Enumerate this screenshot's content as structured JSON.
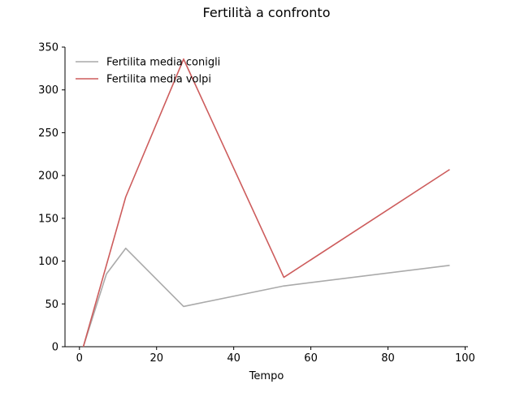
{
  "chart_data": {
    "type": "line",
    "title": "Fertilità a confronto",
    "xlabel": "Tempo",
    "ylabel": "",
    "xlim": [
      -3.75,
      100.75
    ],
    "ylim": [
      0,
      350
    ],
    "xticks": [
      0,
      20,
      40,
      60,
      80,
      100
    ],
    "yticks": [
      0,
      50,
      100,
      150,
      200,
      250,
      300,
      350
    ],
    "grid": false,
    "legend_position": "top-left",
    "series": [
      {
        "name": "Fertilita media conigli",
        "color": "#aaaaaa",
        "x": [
          1,
          7,
          12,
          27,
          53,
          96
        ],
        "y": [
          0,
          85,
          115,
          47,
          71,
          95
        ]
      },
      {
        "name": "Fertilita media volpi",
        "color": "#cd5c5c",
        "x": [
          1,
          12,
          27,
          53,
          96
        ],
        "y": [
          0,
          175,
          336,
          81,
          207
        ]
      }
    ]
  }
}
